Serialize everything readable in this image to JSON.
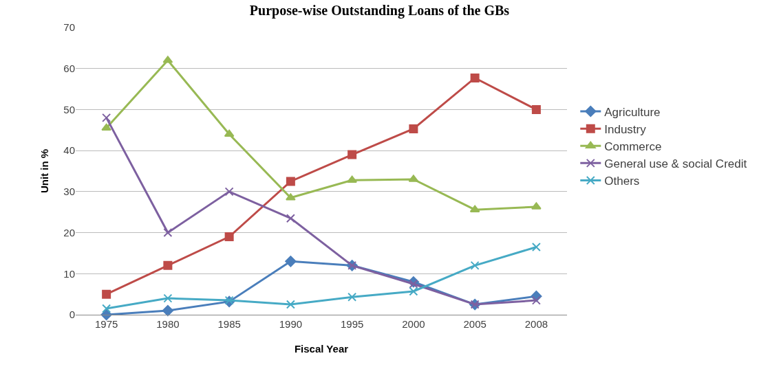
{
  "chart_data": {
    "type": "line",
    "title": "Purpose-wise Outstanding Loans of the GBs",
    "xlabel": "Fiscal Year",
    "ylabel": "Unit in %",
    "categories": [
      "1975",
      "1980",
      "1985",
      "1990",
      "1995",
      "2000",
      "2005",
      "2008"
    ],
    "series": [
      {
        "name": "Agriculture",
        "color": "#4a7ebb",
        "marker": "diamond",
        "values": [
          0,
          1,
          3.2,
          13,
          12,
          8,
          2.5,
          4.5
        ]
      },
      {
        "name": "Industry",
        "color": "#be4b48",
        "marker": "square",
        "values": [
          5,
          12,
          19,
          32.5,
          39,
          45.3,
          57.7,
          50
        ]
      },
      {
        "name": "Commerce",
        "color": "#98b954",
        "marker": "triangle",
        "values": [
          45.5,
          62,
          44,
          28.5,
          32.8,
          33,
          25.6,
          26.3
        ]
      },
      {
        "name": "General use & social Credit",
        "color": "#7d60a0",
        "marker": "cross",
        "values": [
          48,
          20,
          30,
          23.5,
          12,
          7.5,
          2.5,
          3.5
        ]
      },
      {
        "name": "Others",
        "color": "#46aac5",
        "marker": "cross",
        "values": [
          1.5,
          4,
          3.5,
          2.5,
          4.3,
          5.7,
          12,
          16.5
        ]
      }
    ],
    "ylim": [
      0,
      70
    ],
    "yticks": [
      0,
      10,
      20,
      30,
      40,
      50,
      60,
      70
    ],
    "grid": "y",
    "legend": "right"
  }
}
